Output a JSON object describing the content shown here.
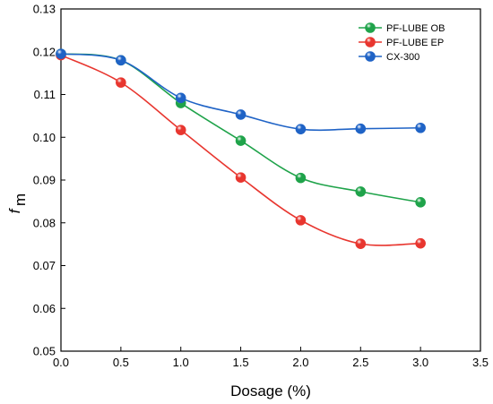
{
  "chart_data": {
    "type": "line",
    "title": "",
    "xlabel": "Dosage (%)",
    "ylabel": "f",
    "ylabel_sub": "m",
    "xlim": [
      0.0,
      3.5
    ],
    "ylim": [
      0.05,
      0.13
    ],
    "xticks": [
      "0.0",
      "0.5",
      "1.0",
      "1.5",
      "2.0",
      "2.5",
      "3.0",
      "3.5"
    ],
    "yticks": [
      "0.05",
      "0.06",
      "0.07",
      "0.08",
      "0.09",
      "0.10",
      "0.11",
      "0.12",
      "0.13"
    ],
    "grid": false,
    "legend_position": "top-right",
    "x": [
      0.0,
      0.5,
      1.0,
      1.5,
      2.0,
      2.5,
      3.0
    ],
    "series": [
      {
        "name": "PF-LUBE OB",
        "color": "#1fa34a",
        "values": [
          0.1195,
          0.118,
          0.108,
          0.0992,
          0.0905,
          0.0873,
          0.0848
        ]
      },
      {
        "name": "PF-LUBE EP",
        "color": "#e8362f",
        "values": [
          0.1192,
          0.1128,
          0.1017,
          0.0906,
          0.0806,
          0.0751,
          0.0752
        ]
      },
      {
        "name": "CX-300",
        "color": "#1f63c6",
        "values": [
          0.1195,
          0.118,
          0.1092,
          0.1053,
          0.1019,
          0.102,
          0.1022
        ]
      }
    ]
  }
}
